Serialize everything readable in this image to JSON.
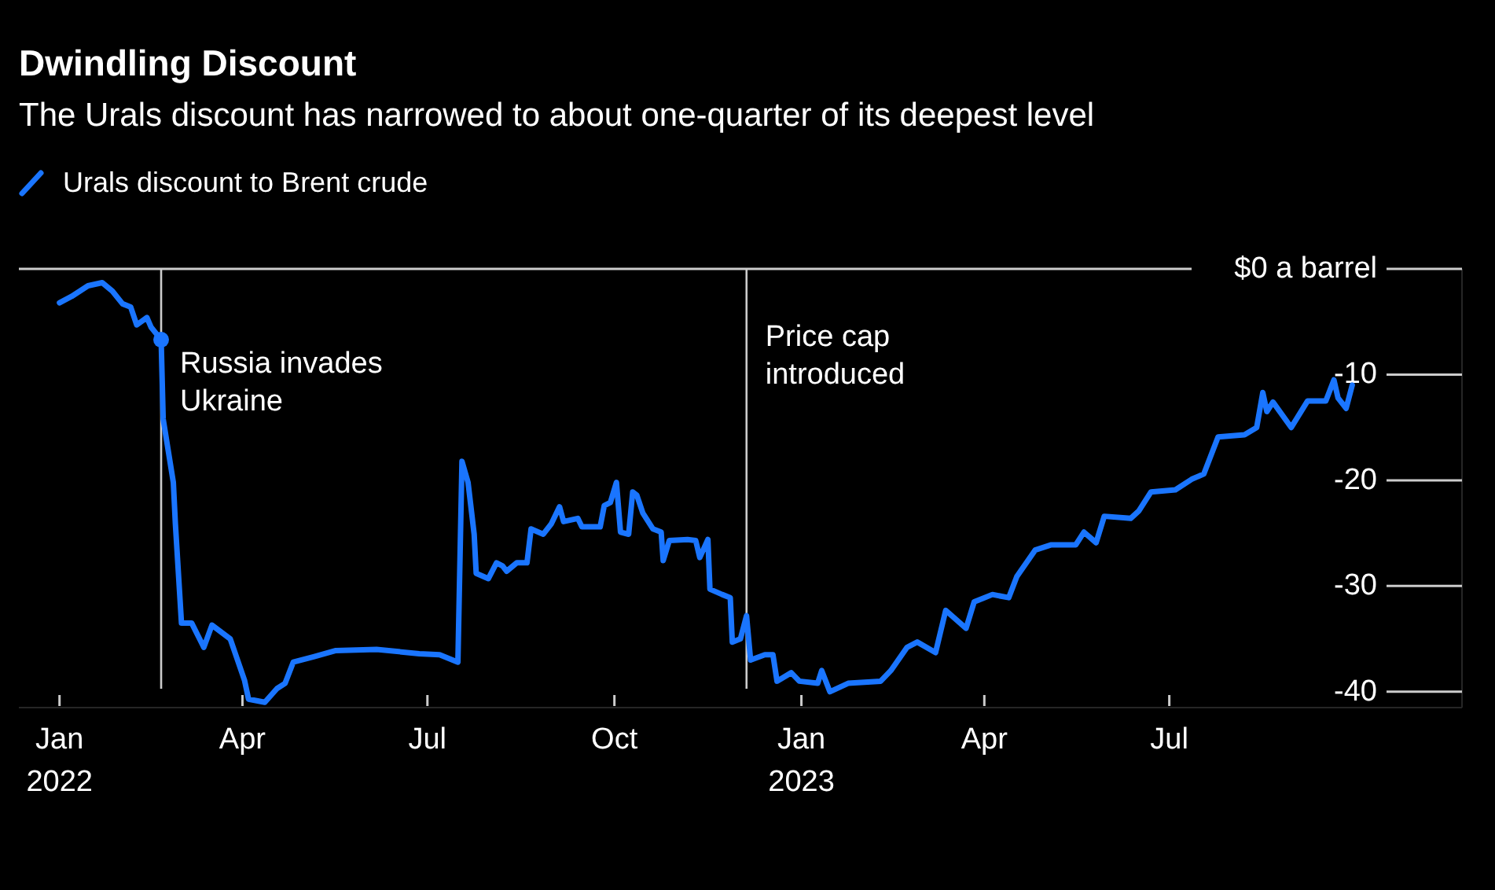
{
  "chart_data": {
    "type": "line",
    "title": "Dwindling Discount",
    "subtitle": "The Urals discount has narrowed to about one-quarter of its deepest level",
    "x": [
      "2022-01-01",
      "2022-01-07",
      "2022-01-15",
      "2022-01-22",
      "2022-01-27",
      "2022-02-01",
      "2022-02-05",
      "2022-02-08",
      "2022-02-13",
      "2022-02-15",
      "2022-02-20",
      "2022-02-21",
      "2022-02-26",
      "2022-02-27",
      "2022-03-02",
      "2022-03-07",
      "2022-03-13",
      "2022-03-17",
      "2022-03-26",
      "2022-04-02",
      "2022-04-04",
      "2022-04-12",
      "2022-04-18",
      "2022-04-22",
      "2022-04-26",
      "2022-05-06",
      "2022-05-17",
      "2022-06-06",
      "2022-06-27",
      "2022-07-07",
      "2022-07-16",
      "2022-07-18",
      "2022-07-21",
      "2022-07-24",
      "2022-07-25",
      "2022-07-31",
      "2022-08-04",
      "2022-08-07",
      "2022-08-09",
      "2022-08-14",
      "2022-08-19",
      "2022-08-21",
      "2022-08-27",
      "2022-08-31",
      "2022-09-04",
      "2022-09-06",
      "2022-09-13",
      "2022-09-15",
      "2022-09-24",
      "2022-09-26",
      "2022-09-29",
      "2022-10-02",
      "2022-10-04",
      "2022-10-08",
      "2022-10-10",
      "2022-10-12",
      "2022-10-15",
      "2022-10-20",
      "2022-10-24",
      "2022-10-25",
      "2022-10-28",
      "2022-11-06",
      "2022-11-10",
      "2022-11-12",
      "2022-11-16",
      "2022-11-17",
      "2022-11-23",
      "2022-11-27",
      "2022-11-28",
      "2022-12-02",
      "2022-12-05",
      "2022-12-07",
      "2022-12-14",
      "2022-12-18",
      "2022-12-20",
      "2022-12-27",
      "2022-12-31",
      "2023-01-09",
      "2023-01-11",
      "2023-01-15",
      "2023-01-24",
      "2023-02-09",
      "2023-02-14",
      "2023-02-22",
      "2023-02-27",
      "2023-03-08",
      "2023-03-13",
      "2023-03-23",
      "2023-03-27",
      "2023-04-05",
      "2023-04-13",
      "2023-04-17",
      "2023-04-26",
      "2023-05-04",
      "2023-05-16",
      "2023-05-20",
      "2023-05-26",
      "2023-05-30",
      "2023-06-12",
      "2023-06-16",
      "2023-06-22",
      "2023-07-04",
      "2023-07-12",
      "2023-07-18",
      "2023-07-25",
      "2023-08-07",
      "2023-08-13",
      "2023-08-16",
      "2023-08-18",
      "2023-08-21",
      "2023-08-30",
      "2023-09-07",
      "2023-09-16",
      "2023-09-20",
      "2023-09-22",
      "2023-09-26",
      "2023-09-29"
    ],
    "series": [
      {
        "name": "Urals discount to Brent crude",
        "color": "#1a75ff",
        "values": [
          -3.2,
          -2.6,
          -1.6,
          -1.3,
          -2.1,
          -3.3,
          -3.6,
          -5.3,
          -4.6,
          -5.5,
          -6.7,
          -14.2,
          -20.2,
          -24.1,
          -33.5,
          -33.5,
          -35.8,
          -33.7,
          -35,
          -38.9,
          -40.7,
          -41,
          -39.7,
          -39.2,
          -37.2,
          -36.7,
          -36.1,
          -36,
          -36.4,
          -36.5,
          -37.2,
          -18.2,
          -20.2,
          -25.1,
          -28.8,
          -29.3,
          -27.8,
          -28.1,
          -28.6,
          -27.8,
          -27.8,
          -24.6,
          -25.1,
          -24.1,
          -22.5,
          -23.9,
          -23.6,
          -24.4,
          -24.4,
          -22.4,
          -22.1,
          -20.2,
          -24.9,
          -25.1,
          -21.1,
          -21.4,
          -23.1,
          -24.6,
          -24.9,
          -27.6,
          -25.7,
          -25.6,
          -25.7,
          -27.3,
          -25.6,
          -30.3,
          -30.8,
          -31.1,
          -35.3,
          -35,
          -32.8,
          -37,
          -36.5,
          -36.5,
          -39,
          -38.2,
          -39,
          -39.2,
          -38,
          -40,
          -39.2,
          -39,
          -38,
          -35.8,
          -35.3,
          -36.3,
          -32.3,
          -34,
          -31.5,
          -30.8,
          -31.1,
          -29.1,
          -26.6,
          -26.1,
          -26.1,
          -24.9,
          -25.9,
          -23.4,
          -23.6,
          -22.9,
          -21.1,
          -20.9,
          -19.9,
          -19.4,
          -15.9,
          -15.7,
          -15,
          -11.7,
          -13.5,
          -12.6,
          -15,
          -12.5,
          -12.5,
          -10.5,
          -12.2,
          -13.2,
          -11
        ]
      }
    ],
    "xlim": [
      "2021-12-12",
      "2023-11-22"
    ],
    "xticks": [
      {
        "value": "2022-01-01",
        "label": "Jan\n2022"
      },
      {
        "value": "2022-04-01",
        "label": "Apr"
      },
      {
        "value": "2022-07-01",
        "label": "Jul"
      },
      {
        "value": "2022-10-01",
        "label": "Oct"
      },
      {
        "value": "2023-01-01",
        "label": "Jan\n2023"
      },
      {
        "value": "2023-04-01",
        "label": "Apr"
      },
      {
        "value": "2023-07-01",
        "label": "Jul"
      }
    ],
    "ylim": [
      -41.5,
      0
    ],
    "yticks": [
      {
        "value": 0,
        "label": "$0 a barrel"
      },
      -10,
      -20,
      -30,
      -40
    ],
    "ref_lines": [
      {
        "axis": "x",
        "value": "2022-02-20",
        "color": "#cccccc"
      },
      {
        "axis": "x",
        "value": "2022-12-05",
        "label": "Price cap introduced",
        "color": "#cccccc"
      }
    ],
    "annotations": [
      {
        "text": "Russia invades Ukraine",
        "x": "2022-02-20",
        "y": -6.7
      }
    ],
    "legend": "top left",
    "grid": false
  }
}
